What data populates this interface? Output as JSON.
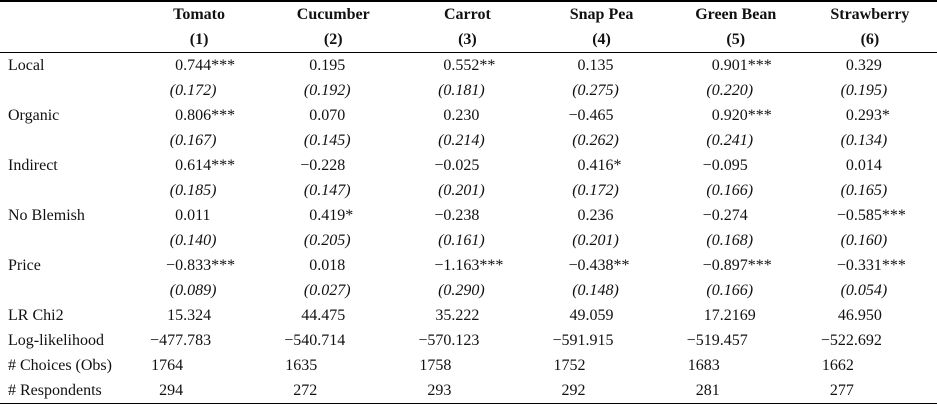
{
  "table": {
    "columns": [
      {
        "label": "Tomato",
        "number": "(1)"
      },
      {
        "label": "Cucumber",
        "number": "(2)"
      },
      {
        "label": "Carrot",
        "number": "(3)"
      },
      {
        "label": "Snap Pea",
        "number": "(4)"
      },
      {
        "label": "Green Bean",
        "number": "(5)"
      },
      {
        "label": "Strawberry",
        "number": "(6)"
      }
    ],
    "rows": [
      {
        "label": "Local",
        "style": "coef",
        "cells": [
          "0.744***",
          "0.195",
          "0.552**",
          "0.135",
          "0.901***",
          "0.329"
        ]
      },
      {
        "label": "",
        "style": "se",
        "cells": [
          "(0.172)",
          "(0.192)",
          "(0.181)",
          "(0.275)",
          "(0.220)",
          "(0.195)"
        ]
      },
      {
        "label": "Organic",
        "style": "coef",
        "cells": [
          "0.806***",
          "0.070",
          "0.230",
          "−0.465",
          "0.920***",
          "0.293*"
        ]
      },
      {
        "label": "",
        "style": "se",
        "cells": [
          "(0.167)",
          "(0.145)",
          "(0.214)",
          "(0.262)",
          "(0.241)",
          "(0.134)"
        ]
      },
      {
        "label": "Indirect",
        "style": "coef",
        "cells": [
          "0.614***",
          "−0.228",
          "−0.025",
          "0.416*",
          "−0.095",
          "0.014"
        ]
      },
      {
        "label": "",
        "style": "se",
        "cells": [
          "(0.185)",
          "(0.147)",
          "(0.201)",
          "(0.172)",
          "(0.166)",
          "(0.165)"
        ]
      },
      {
        "label": "No Blemish",
        "style": "coef",
        "cells": [
          "0.011",
          "0.419*",
          "−0.238",
          "0.236",
          "−0.274",
          "−0.585***"
        ]
      },
      {
        "label": "",
        "style": "se",
        "cells": [
          "(0.140)",
          "(0.205)",
          "(0.161)",
          "(0.201)",
          "(0.168)",
          "(0.160)"
        ]
      },
      {
        "label": "Price",
        "style": "coef",
        "cells": [
          "−0.833***",
          "0.018",
          "−1.163***",
          "−0.438**",
          "−0.897***",
          "−0.331***"
        ]
      },
      {
        "label": "",
        "style": "se",
        "cells": [
          "(0.089)",
          "(0.027)",
          "(0.290)",
          "(0.148)",
          "(0.166)",
          "(0.054)"
        ]
      },
      {
        "label": "LR Chi2",
        "style": "stat",
        "cells": [
          "15.324",
          "44.475",
          "35.222",
          "49.059",
          "17.2169",
          "46.950"
        ]
      },
      {
        "label": "Log-likelihood",
        "style": "stat",
        "cells": [
          "−477.783",
          "−540.714",
          "−570.123",
          "−591.915",
          "−519.457",
          "−522.692"
        ]
      },
      {
        "label": "# Choices (Obs)",
        "style": "stat",
        "cells": [
          "1764",
          "1635",
          "1758",
          "1752",
          "1683",
          "1662"
        ]
      },
      {
        "label": "# Respondents",
        "style": "stat",
        "cells": [
          "294",
          "272",
          "293",
          "292",
          "281",
          "277"
        ]
      }
    ]
  },
  "colors": {
    "text": "#111111",
    "rule": "#000000",
    "background": "#ffffff"
  }
}
